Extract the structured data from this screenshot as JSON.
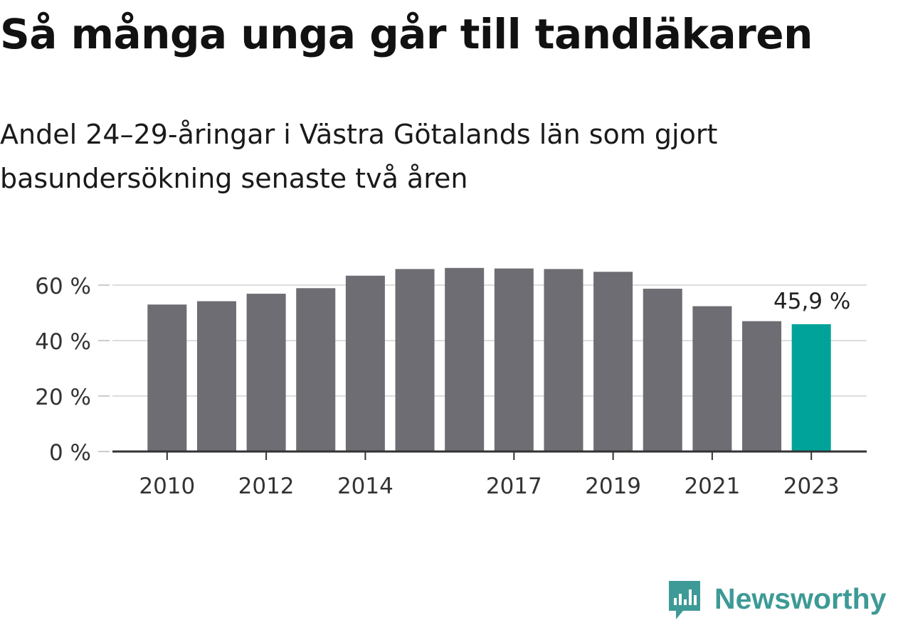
{
  "chart_data": {
    "type": "bar",
    "title": "Så många unga går till tandläkaren",
    "subtitle": "Andel 24–29-åringar i Västra Götalands län som gjort basundersökning senaste två åren",
    "categories": [
      "2010",
      "2011",
      "2012",
      "2013",
      "2014",
      "2015",
      "2016",
      "2017",
      "2018",
      "2019",
      "2020",
      "2021",
      "2022",
      "2023"
    ],
    "x_tick_labels": [
      "2010",
      "",
      "2012",
      "",
      "2014",
      "",
      "",
      "2017",
      "",
      "2019",
      "",
      "2021",
      "",
      "2023"
    ],
    "values": [
      53,
      54.2,
      56.9,
      58.9,
      63.4,
      65.8,
      66.2,
      66,
      65.8,
      64.8,
      58.7,
      52.4,
      47,
      45.9
    ],
    "highlight_index": 13,
    "data_label": "45,9 %",
    "yticks": [
      0,
      20,
      40,
      60
    ],
    "ytick_labels": [
      "0 %",
      "20 %",
      "40 %",
      "60 %"
    ],
    "ylim": [
      0,
      70
    ],
    "grid": true,
    "xlabel": "",
    "ylabel": "",
    "colors": {
      "bar": "#6e6d73",
      "highlight": "#00a39a",
      "grid": "#dddddd",
      "axis": "#333333"
    }
  },
  "brand": {
    "name": "Newsworthy",
    "icon": "newsworthy-logo-icon",
    "color": "#3d9a96"
  }
}
